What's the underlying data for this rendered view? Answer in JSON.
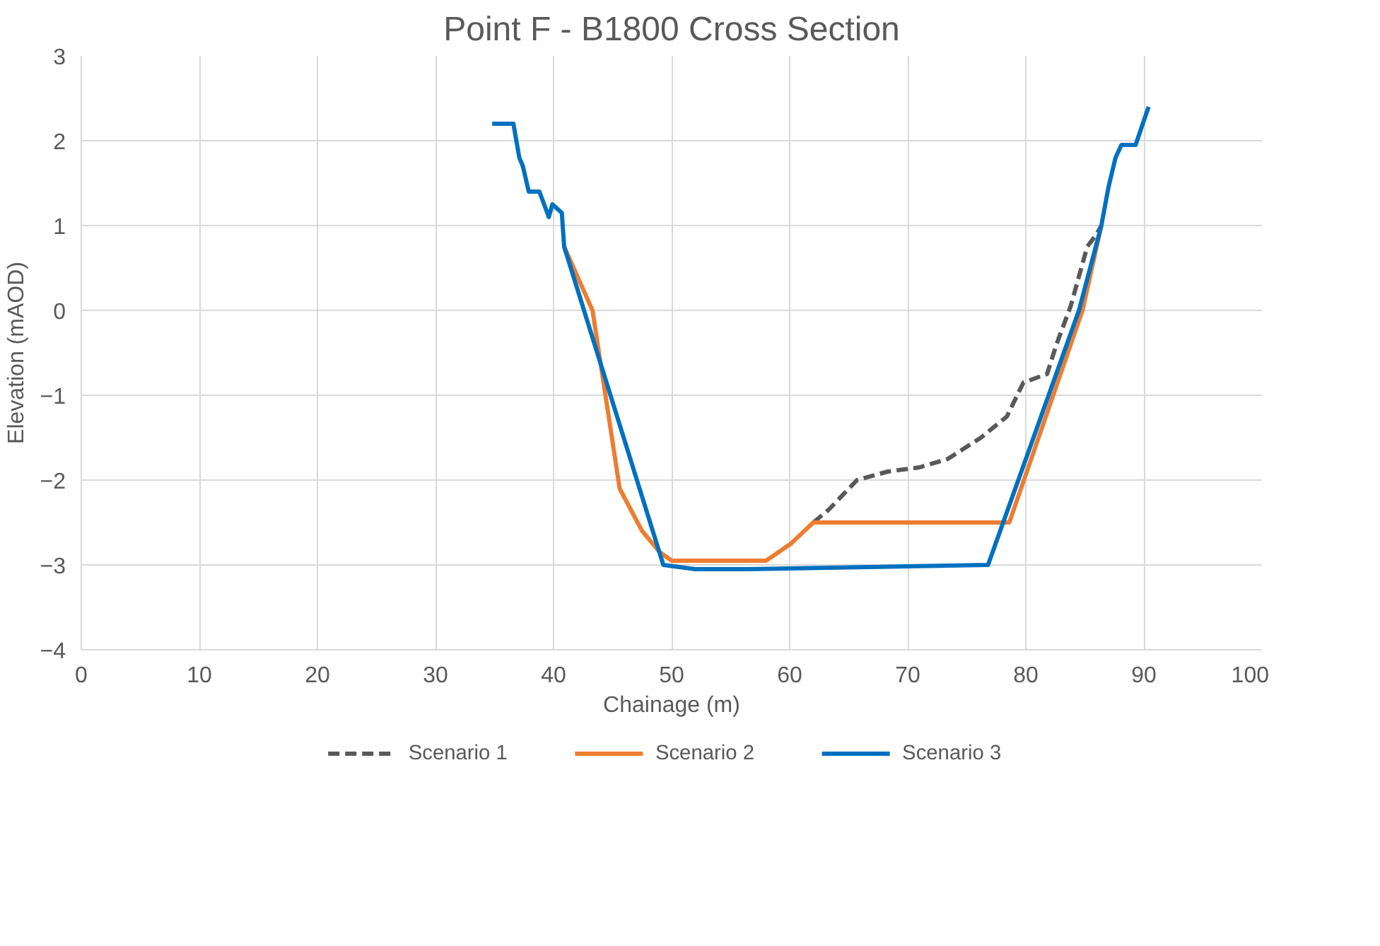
{
  "chart_data": {
    "type": "line",
    "title": "Point F - B1800 Cross Section",
    "xlabel": "Chainage (m)",
    "ylabel": "Elevation (mAOD)",
    "xlim": [
      0,
      100
    ],
    "xticks": [
      0,
      10,
      20,
      30,
      40,
      50,
      60,
      70,
      80,
      90,
      100
    ],
    "ylim": [
      -4,
      3
    ],
    "yticks": [
      -4,
      -3,
      -2,
      -1,
      0,
      1,
      2,
      3
    ],
    "grid": true,
    "legend": "bottom",
    "marker": "none",
    "series": [
      {
        "name": "Scenario 1",
        "color": "#595959",
        "line_style": "dashed",
        "x": [
          62.0,
          63.3,
          65.7,
          68.3,
          71.0,
          73.4,
          76.2,
          78.4,
          79.8,
          81.8,
          82.6,
          83.8,
          85.2,
          86.0,
          86.4
        ],
        "values": [
          -2.5,
          -2.35,
          -2.0,
          -1.9,
          -1.85,
          -1.75,
          -1.5,
          -1.25,
          -0.85,
          -0.75,
          -0.4,
          0.05,
          0.75,
          0.9,
          1.0
        ]
      },
      {
        "name": "Scenario 2",
        "color": "#ed7d31",
        "line_style": "solid",
        "x": [
          40.9,
          43.3,
          45.6,
          47.5,
          49.0,
          50.0,
          58.0,
          60.1,
          62.0,
          78.6,
          84.8,
          86.4
        ],
        "values": [
          0.75,
          0.0,
          -2.1,
          -2.6,
          -2.85,
          -2.95,
          -2.95,
          -2.75,
          -2.5,
          -2.5,
          0.0,
          1.0
        ]
      },
      {
        "name": "Scenario 3",
        "color": "#0070c0",
        "line_style": "solid",
        "x": [
          34.8,
          36.6,
          37.1,
          37.4,
          37.9,
          38.8,
          39.6,
          39.9,
          40.7,
          40.9,
          49.3,
          52.0,
          56.5,
          76.8,
          84.5,
          86.4,
          87.0,
          87.6,
          88.1,
          89.3,
          90.4
        ],
        "values": [
          2.2,
          2.2,
          1.8,
          1.7,
          1.4,
          1.4,
          1.1,
          1.25,
          1.15,
          0.75,
          -3.0,
          -3.05,
          -3.05,
          -3.0,
          0.0,
          1.0,
          1.45,
          1.8,
          1.95,
          1.95,
          2.4
        ]
      }
    ]
  }
}
